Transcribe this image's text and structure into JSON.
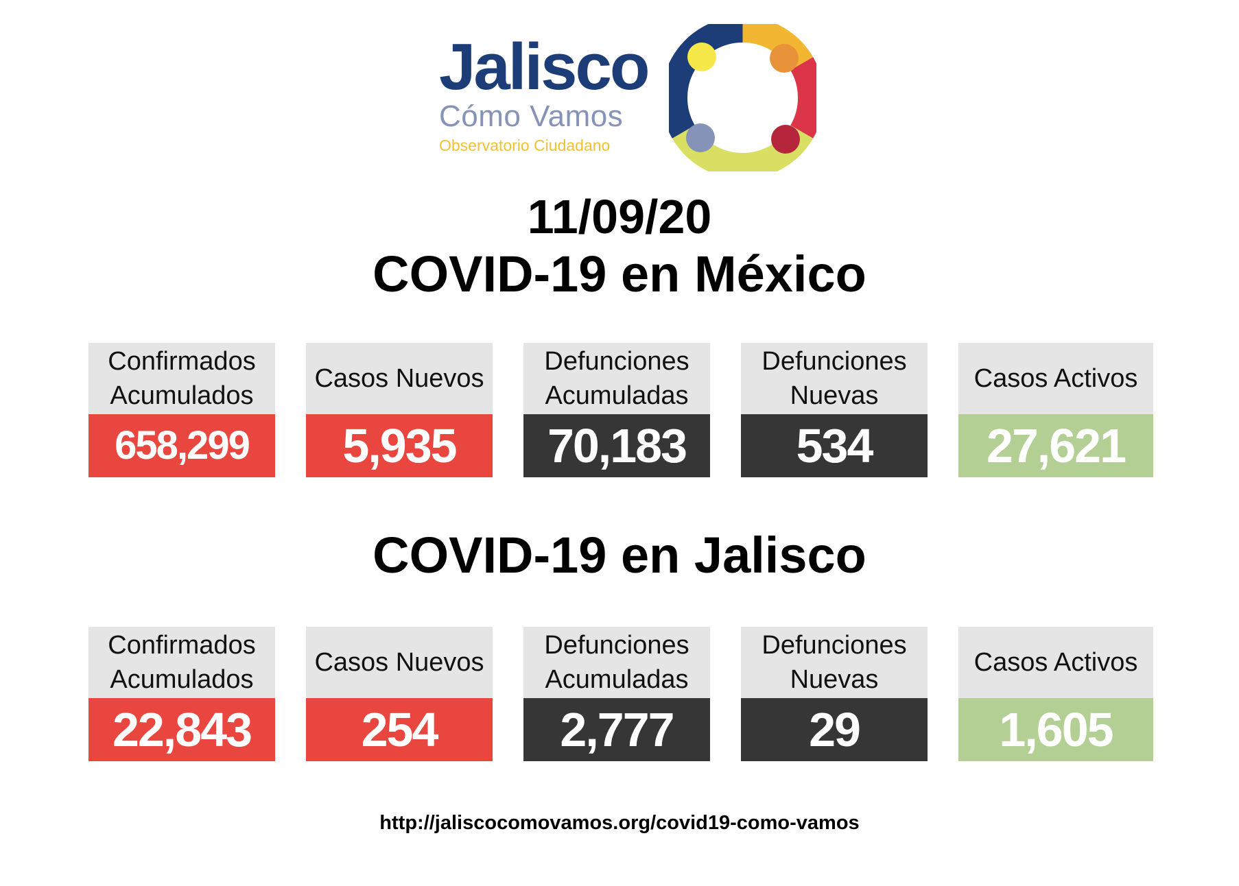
{
  "logo": {
    "word": "Jalisco",
    "subtitle": "Cómo Vamos",
    "tagline": "Observatorio Ciudadano",
    "colors": {
      "navy": "#1d3d79",
      "periwinkle": "#8593b8",
      "gold": "#f0c133",
      "red": "#dc3448",
      "yellow": "#f7d246",
      "lime": "#d8df63"
    }
  },
  "date": "11/09/20",
  "mexico": {
    "title": "COVID-19 en México",
    "cards": [
      {
        "label_line1": "Confirmados",
        "label_line2": "Acumulados",
        "value": "658,299"
      },
      {
        "label_line1": "Casos Nuevos",
        "label_line2": "",
        "value": "5,935"
      },
      {
        "label_line1": "Defunciones",
        "label_line2": "Acumuladas",
        "value": "70,183"
      },
      {
        "label_line1": "Defunciones",
        "label_line2": "Nuevas",
        "value": "534"
      },
      {
        "label_line1": "Casos Activos",
        "label_line2": "",
        "value": "27,621"
      }
    ]
  },
  "jalisco": {
    "title": "COVID-19 en Jalisco",
    "cards": [
      {
        "label_line1": "Confirmados",
        "label_line2": "Acumulados",
        "value": "22,843"
      },
      {
        "label_line1": "Casos Nuevos",
        "label_line2": "",
        "value": "254"
      },
      {
        "label_line1": "Defunciones",
        "label_line2": "Acumuladas",
        "value": "2,777"
      },
      {
        "label_line1": "Defunciones",
        "label_line2": "Nuevas",
        "value": "29"
      },
      {
        "label_line1": "Casos Activos",
        "label_line2": "",
        "value": "1,605"
      }
    ]
  },
  "card_colors": {
    "cases": "#e8463e",
    "deaths": "#363636",
    "active": "#b3cf93",
    "label_bg": "#e5e5e5"
  },
  "footer_url": "http://jaliscocomovamos.org/covid19-como-vamos"
}
